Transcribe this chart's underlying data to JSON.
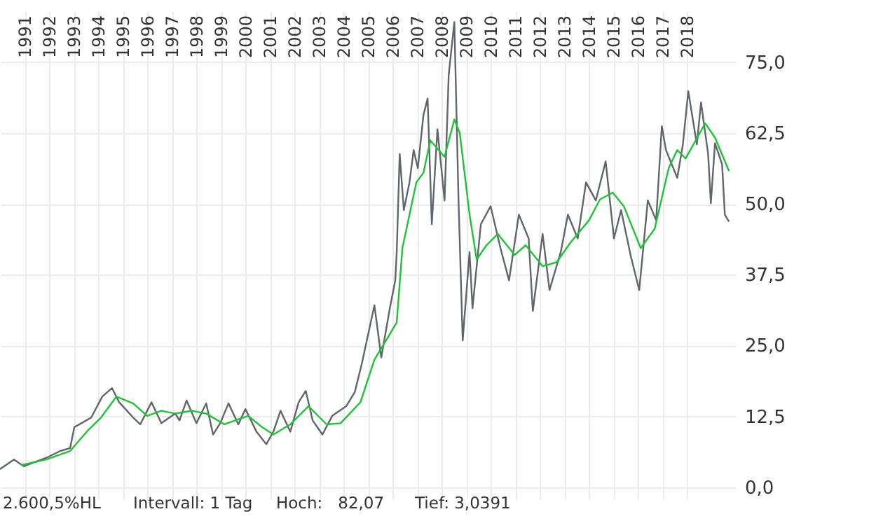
{
  "chart_data": {
    "type": "line",
    "xlim": [
      1989.99,
      2020.0
    ],
    "xticks": [
      1991,
      1992,
      1993,
      1994,
      1995,
      1996,
      1997,
      1998,
      1999,
      2000,
      2001,
      2002,
      2003,
      2004,
      2005,
      2006,
      2007,
      2008,
      2009,
      2010,
      2011,
      2012,
      2013,
      2014,
      2015,
      2016,
      2017,
      2018
    ],
    "ylim": [
      -2,
      84
    ],
    "yticks": [
      {
        "value": 0,
        "label": "0,0"
      },
      {
        "value": 12.5,
        "label": "12,5"
      },
      {
        "value": 25,
        "label": "25,0"
      },
      {
        "value": 37.5,
        "label": "37,5"
      },
      {
        "value": 50,
        "label": "50,0"
      },
      {
        "value": 62.5,
        "label": "62,5"
      },
      {
        "value": 75,
        "label": "75,0"
      }
    ],
    "grid": true,
    "annotations": [
      "2.600,5%HL",
      "Intervall: 1 Tag",
      "Hoch:   82,07",
      "Tief: 3,0391"
    ],
    "series": [
      {
        "color": "#5f666d",
        "x": [
          1989.99,
          1990.56,
          1990.96,
          1991.88,
          1992.45,
          1992.85,
          1993.02,
          1993.31,
          1993.71,
          1994.16,
          1994.56,
          1994.85,
          1995.42,
          1995.71,
          1996.17,
          1996.57,
          1997.14,
          1997.31,
          1997.6,
          1998.0,
          1998.4,
          1998.68,
          1998.97,
          1999.31,
          1999.71,
          2000.0,
          2000.45,
          2000.85,
          2001.14,
          2001.43,
          2001.83,
          2002.17,
          2002.46,
          2002.74,
          2003.14,
          2003.54,
          2004.11,
          2004.46,
          2004.74,
          2005.26,
          2005.54,
          2005.89,
          2006.11,
          2006.17,
          2006.29,
          2006.46,
          2006.69,
          2006.86,
          2007.03,
          2007.26,
          2007.43,
          2007.6,
          2007.83,
          2008.12,
          2008.29,
          2008.52,
          2008.69,
          2008.86,
          2009.14,
          2009.26,
          2009.6,
          2010.0,
          2010.4,
          2010.75,
          2011.15,
          2011.55,
          2011.72,
          2012.12,
          2012.4,
          2012.86,
          2013.15,
          2013.55,
          2013.89,
          2014.29,
          2014.69,
          2015.03,
          2015.32,
          2015.72,
          2016.06,
          2016.41,
          2016.75,
          2016.98,
          2017.15,
          2017.61,
          2017.84,
          2018.06,
          2018.41,
          2018.58,
          2018.87,
          2018.98,
          2019.15,
          2019.44,
          2019.55,
          2019.72
        ],
        "values": [
          3.2,
          4.9,
          3.7,
          5.2,
          6.4,
          6.9,
          10.6,
          11.3,
          12.3,
          16.0,
          17.5,
          15.0,
          12.3,
          11.1,
          15.0,
          11.3,
          13.0,
          11.8,
          15.3,
          11.3,
          14.8,
          9.3,
          11.3,
          14.8,
          11.1,
          13.8,
          9.8,
          7.6,
          9.8,
          13.5,
          9.8,
          15.0,
          17.0,
          11.8,
          9.3,
          12.6,
          14.3,
          16.8,
          21.7,
          32.1,
          22.9,
          31.6,
          36.5,
          41.5,
          58.8,
          48.9,
          53.8,
          59.5,
          56.3,
          65.7,
          68.6,
          46.4,
          63.2,
          50.6,
          72.8,
          82.1,
          50.6,
          25.9,
          41.5,
          31.6,
          46.4,
          49.6,
          42.2,
          36.5,
          48.1,
          43.9,
          31.1,
          44.7,
          34.8,
          41.5,
          48.1,
          43.9,
          53.8,
          50.6,
          57.5,
          43.9,
          48.9,
          40.7,
          34.8,
          50.6,
          47.1,
          63.7,
          59.5,
          54.6,
          60.5,
          69.9,
          60.5,
          67.9,
          58.8,
          50.1,
          60.7,
          57.0,
          48.1,
          46.9
        ]
      },
      {
        "color": "#1ec337",
        "x": [
          1990.85,
          1991.88,
          1992.85,
          1993.59,
          1994.11,
          1994.74,
          1995.42,
          1995.99,
          1996.57,
          1997.14,
          1997.82,
          1998.4,
          1999.14,
          2000.11,
          2000.68,
          2001.14,
          2001.83,
          2002.57,
          2003.31,
          2003.88,
          2004.69,
          2005.26,
          2005.83,
          2006.17,
          2006.4,
          2006.97,
          2007.26,
          2007.54,
          2008.12,
          2008.52,
          2008.74,
          2009.14,
          2009.43,
          2009.83,
          2010.29,
          2010.98,
          2011.43,
          2012.12,
          2012.69,
          2013.26,
          2014.01,
          2014.46,
          2014.98,
          2015.43,
          2016.12,
          2016.69,
          2017.26,
          2017.61,
          2017.95,
          2018.75,
          2019.15,
          2019.72
        ],
        "values": [
          3.9,
          4.9,
          6.4,
          10.1,
          12.3,
          16.0,
          14.8,
          12.6,
          13.5,
          13.0,
          13.5,
          13.0,
          11.1,
          12.6,
          10.6,
          9.3,
          11.1,
          14.3,
          11.1,
          11.3,
          15.0,
          22.5,
          26.6,
          29.1,
          42.2,
          53.8,
          55.5,
          61.2,
          58.3,
          64.9,
          62.5,
          48.1,
          40.2,
          42.7,
          44.7,
          41.0,
          42.7,
          39.0,
          39.7,
          43.2,
          47.1,
          50.8,
          52.0,
          49.6,
          42.2,
          45.6,
          56.3,
          59.5,
          58.0,
          64.2,
          61.7,
          55.8
        ]
      }
    ]
  }
}
